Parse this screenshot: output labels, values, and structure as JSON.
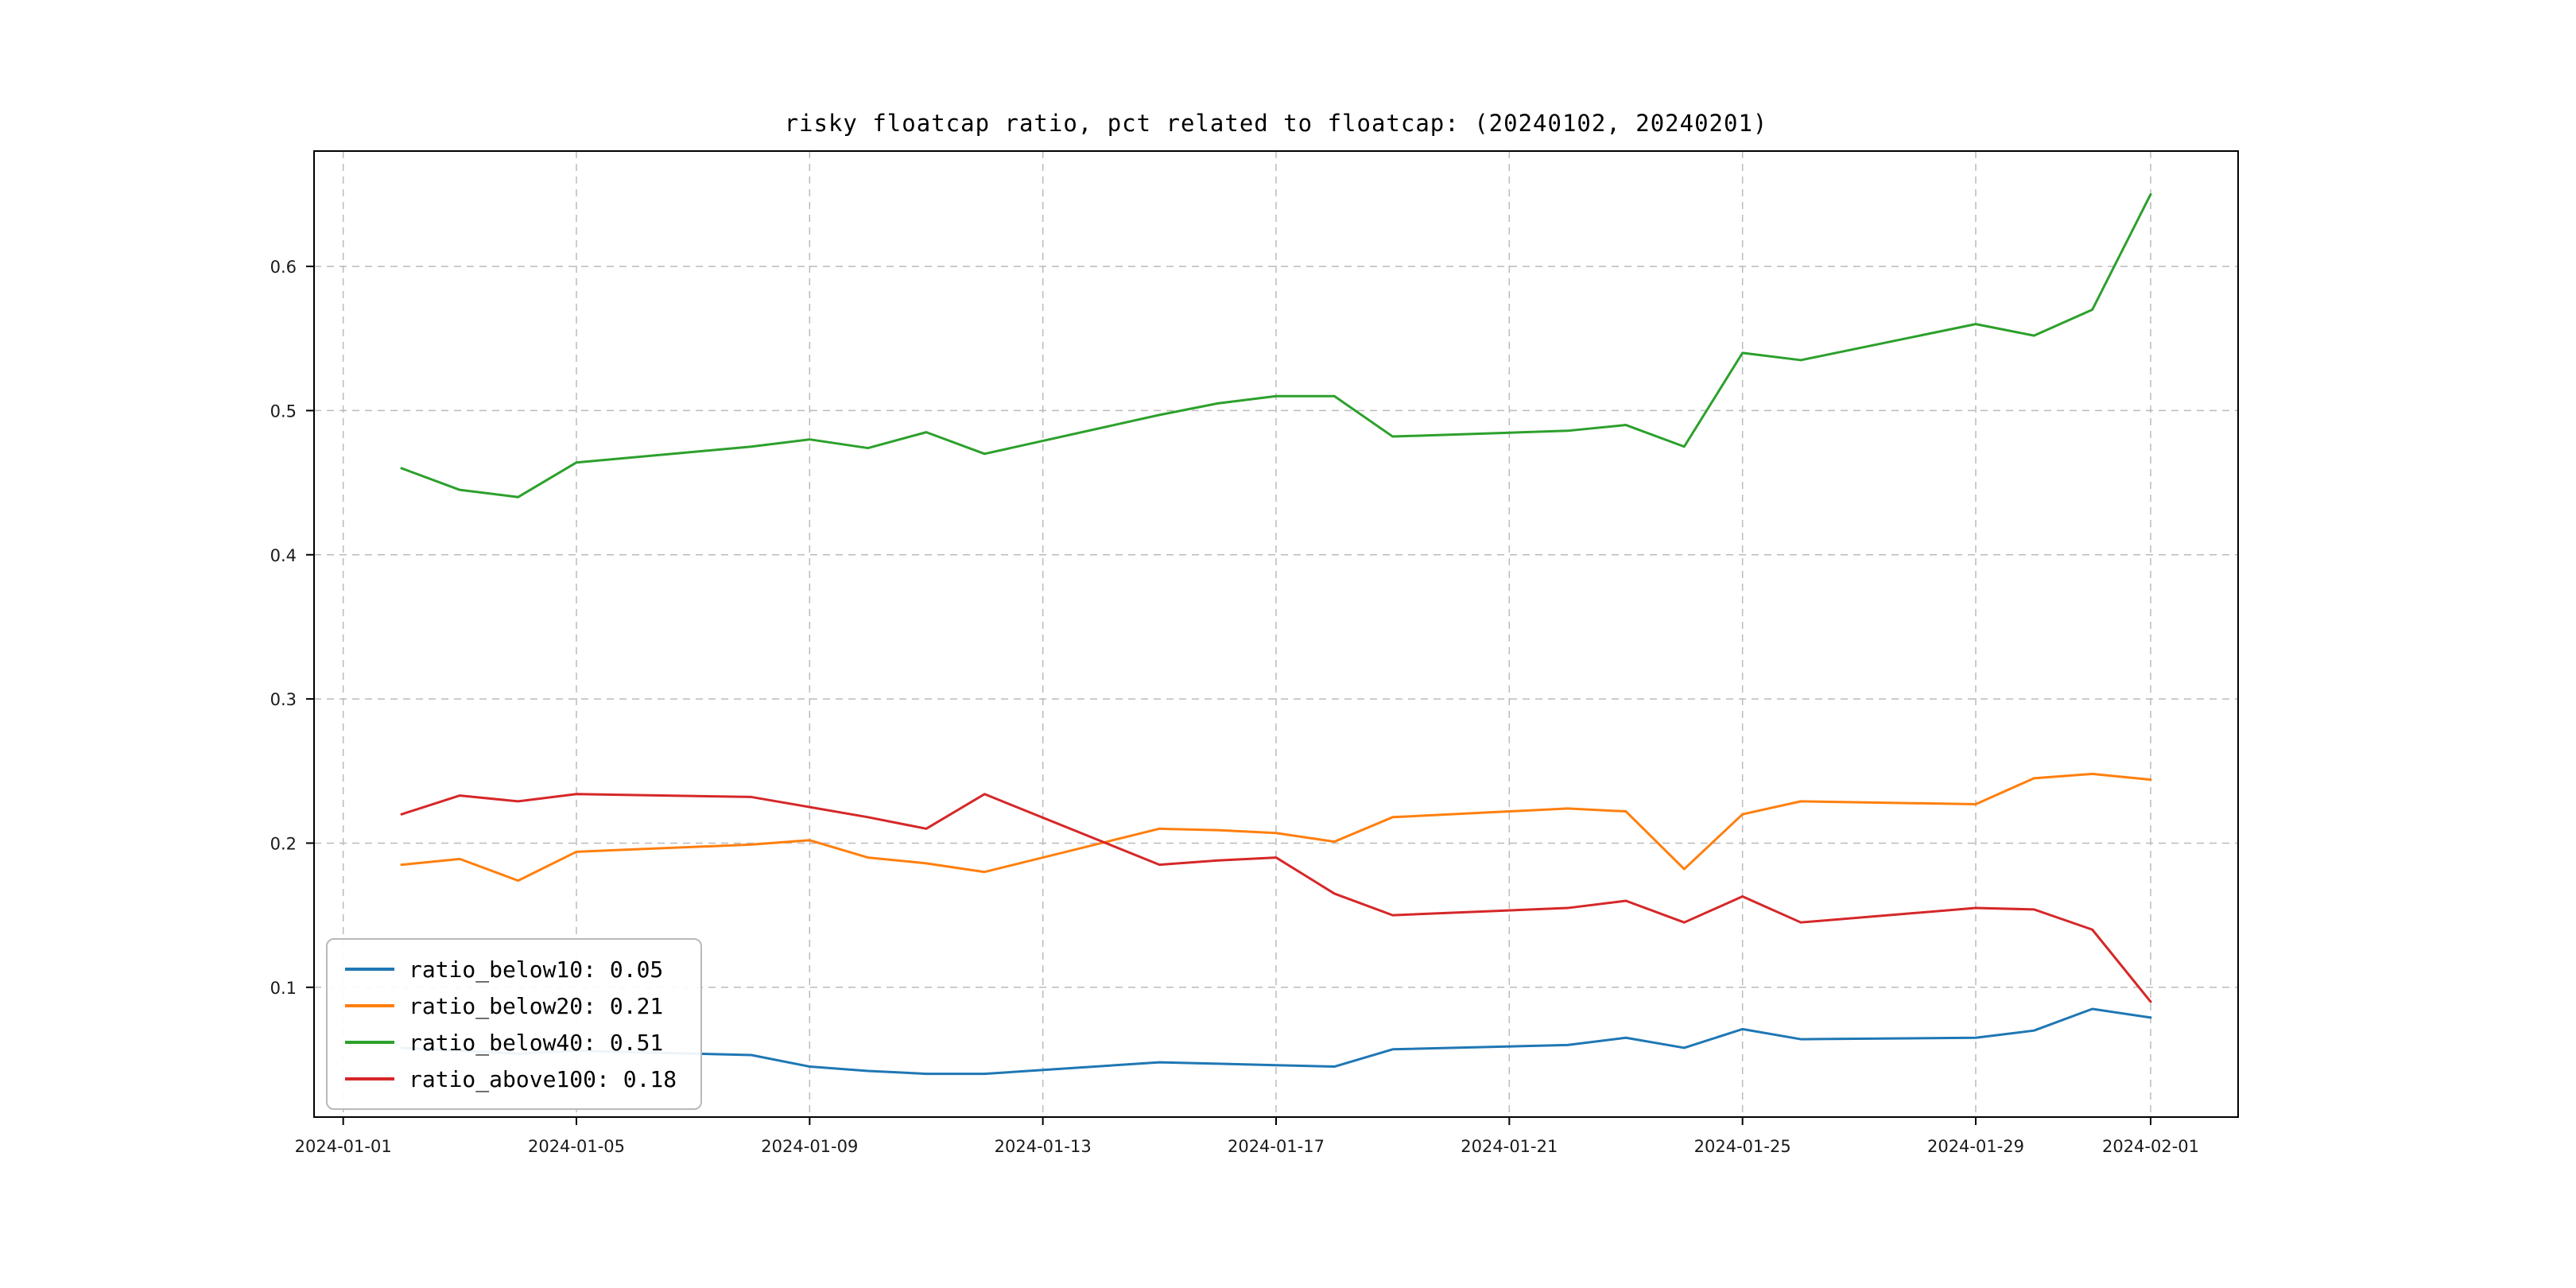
{
  "chart_data": {
    "type": "line",
    "title": "risky floatcap ratio, pct related to floatcap: (20240102, 20240201)",
    "xlabel": "",
    "ylabel": "",
    "grid": true,
    "legend_position": "lower-left",
    "x": [
      "2024-01-02",
      "2024-01-03",
      "2024-01-04",
      "2024-01-05",
      "2024-01-08",
      "2024-01-09",
      "2024-01-10",
      "2024-01-11",
      "2024-01-12",
      "2024-01-15",
      "2024-01-16",
      "2024-01-17",
      "2024-01-18",
      "2024-01-19",
      "2024-01-22",
      "2024-01-23",
      "2024-01-24",
      "2024-01-25",
      "2024-01-26",
      "2024-01-29",
      "2024-01-30",
      "2024-01-31",
      "2024-02-01"
    ],
    "x_ticks": [
      "2024-01-01",
      "2024-01-05",
      "2024-01-09",
      "2024-01-13",
      "2024-01-17",
      "2024-01-21",
      "2024-01-25",
      "2024-01-29",
      "2024-02-01"
    ],
    "y_ticks": [
      "0.1",
      "0.2",
      "0.3",
      "0.4",
      "0.5",
      "0.6"
    ],
    "ylim": [
      0.01,
      0.68
    ],
    "xlim_days": [
      0.5,
      33.5
    ],
    "series": [
      {
        "name": "ratio_below10",
        "legend_label": "ratio_below10: 0.05",
        "color": "#1f77b4",
        "values": [
          0.058,
          0.056,
          0.054,
          0.056,
          0.053,
          0.045,
          0.042,
          0.04,
          0.04,
          0.048,
          0.047,
          0.046,
          0.045,
          0.057,
          0.06,
          0.065,
          0.058,
          0.071,
          0.064,
          0.065,
          0.07,
          0.085,
          0.079
        ]
      },
      {
        "name": "ratio_below20",
        "legend_label": "ratio_below20: 0.21",
        "color": "#ff7f0e",
        "values": [
          0.185,
          0.189,
          0.174,
          0.194,
          0.199,
          0.202,
          0.19,
          0.186,
          0.18,
          0.21,
          0.209,
          0.207,
          0.201,
          0.218,
          0.224,
          0.222,
          0.182,
          0.22,
          0.229,
          0.227,
          0.245,
          0.248,
          0.244
        ]
      },
      {
        "name": "ratio_below40",
        "legend_label": "ratio_below40: 0.51",
        "color": "#2ca02c",
        "values": [
          0.46,
          0.445,
          0.44,
          0.464,
          0.475,
          0.48,
          0.474,
          0.485,
          0.47,
          0.497,
          0.505,
          0.51,
          0.51,
          0.482,
          0.486,
          0.49,
          0.475,
          0.54,
          0.535,
          0.56,
          0.552,
          0.57,
          0.65
        ]
      },
      {
        "name": "ratio_above100",
        "legend_label": "ratio_above100: 0.18",
        "color": "#d62728",
        "values": [
          0.22,
          0.233,
          0.229,
          0.234,
          0.232,
          0.225,
          0.218,
          0.21,
          0.234,
          0.185,
          0.188,
          0.19,
          0.165,
          0.15,
          0.155,
          0.16,
          0.145,
          0.163,
          0.145,
          0.155,
          0.154,
          0.14,
          0.09
        ]
      }
    ]
  }
}
